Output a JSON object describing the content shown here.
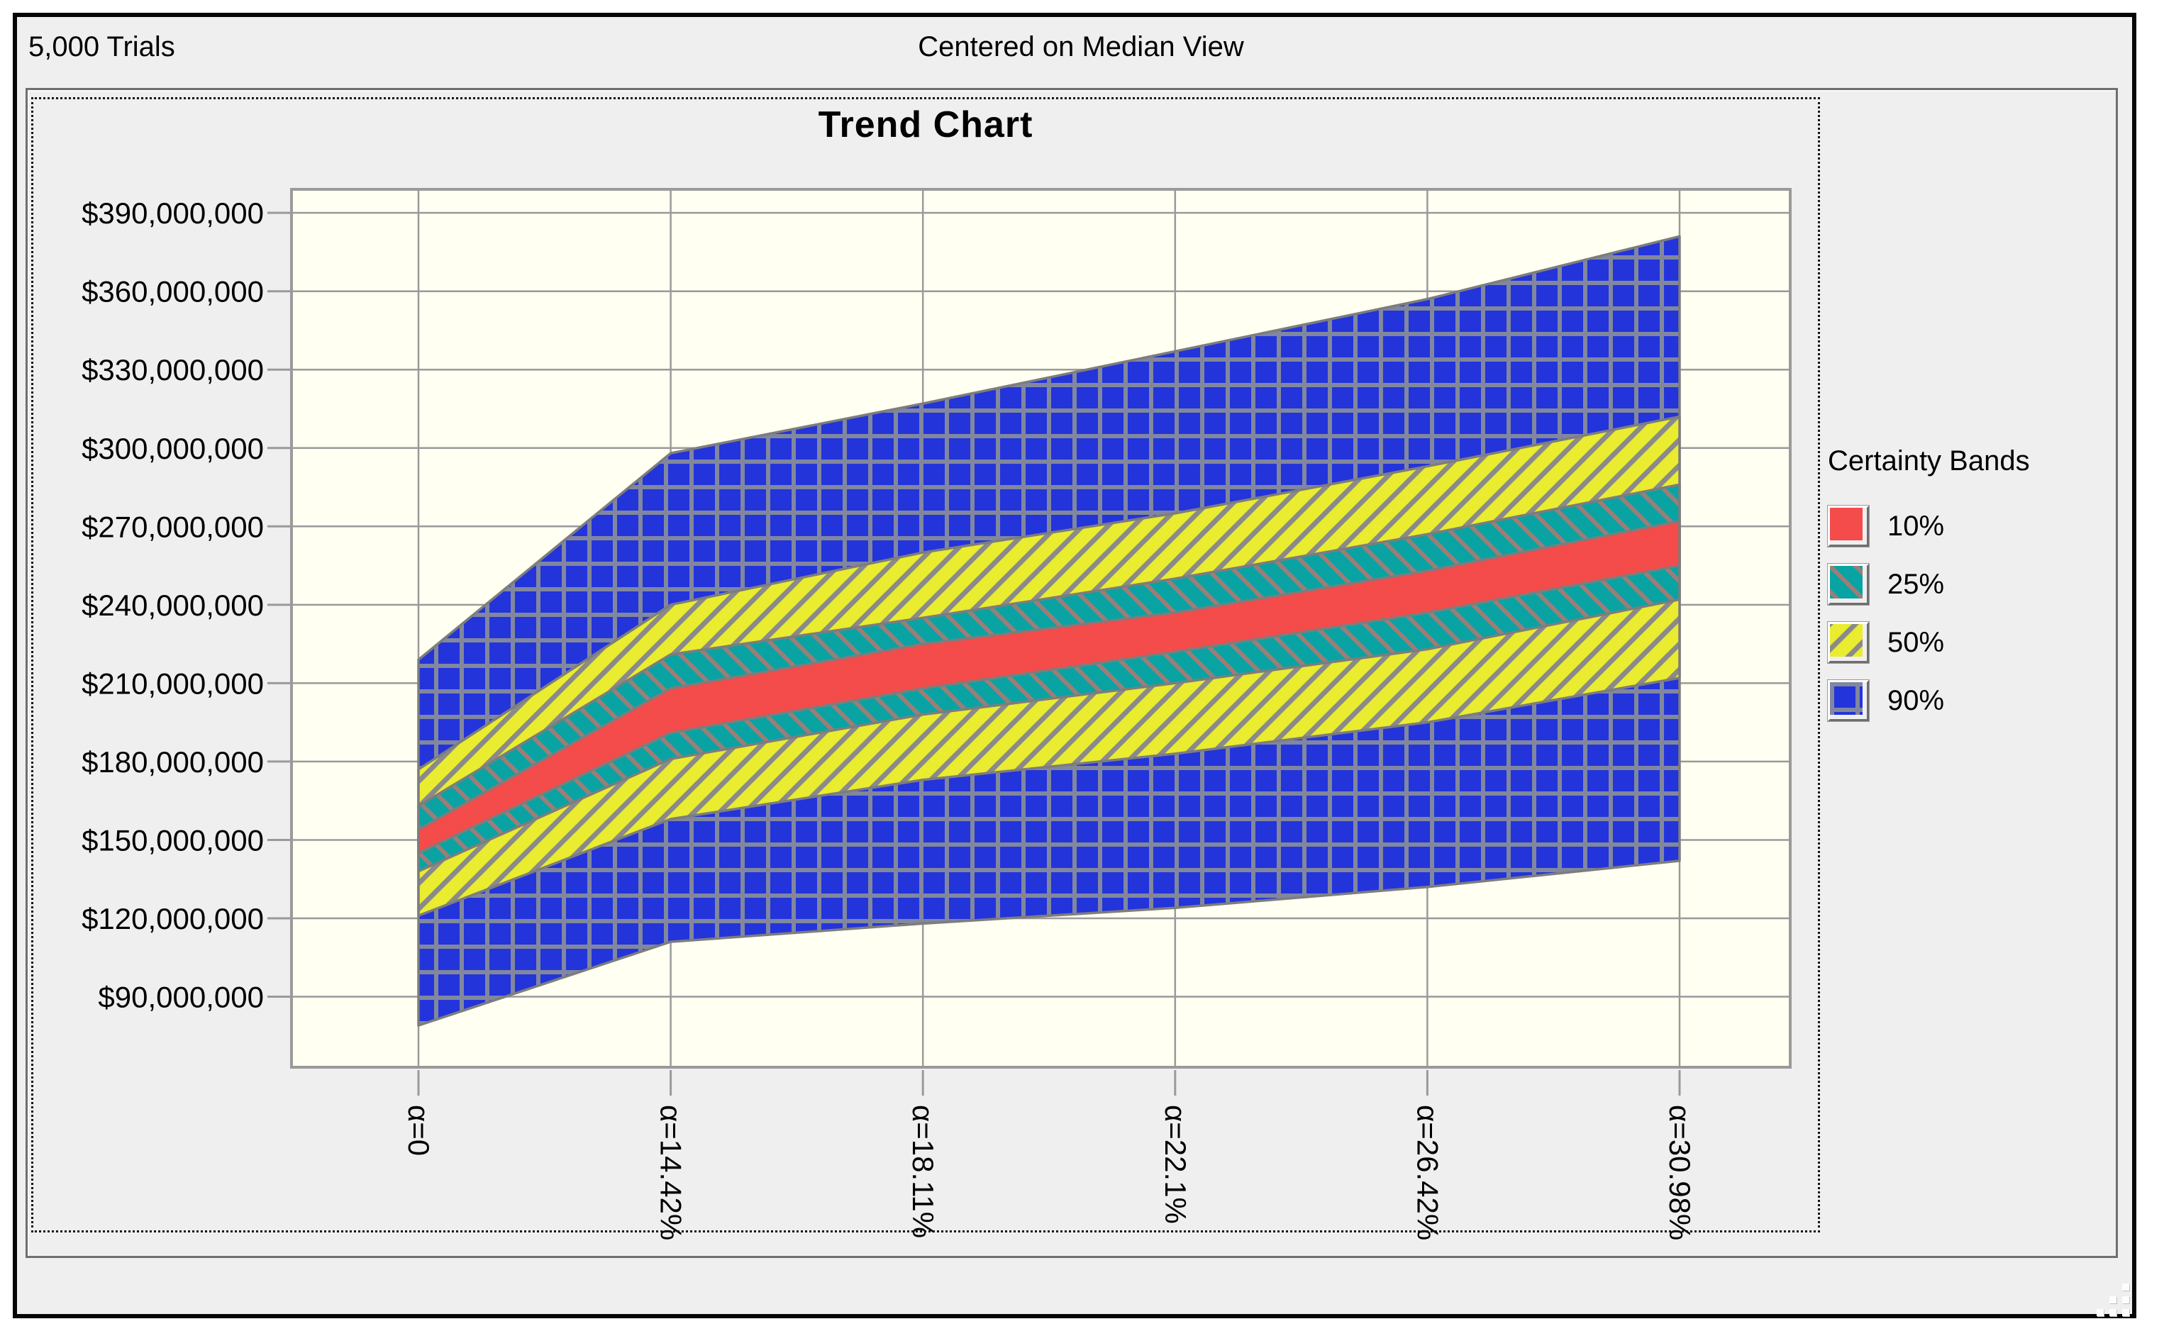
{
  "window": {
    "header_left": "5,000 Trials",
    "header_center": "Centered on Median View"
  },
  "chart_data": {
    "type": "area",
    "title": "Trend Chart",
    "categories": [
      "α=0",
      "α=14.42%",
      "α=18.11%",
      "α=22.1%",
      "α=26.42%",
      "α=30.98%"
    ],
    "xlabel": "",
    "ylabel": "",
    "y_tick_values_millions": [
      90,
      120,
      150,
      180,
      210,
      240,
      270,
      300,
      330,
      360,
      390
    ],
    "y_tick_labels": [
      "$90,000,000",
      "$120,000,000",
      "$150,000,000",
      "$180,000,000",
      "$210,000,000",
      "$240,000,000",
      "$270,000,000",
      "$300,000,000",
      "$330,000,000",
      "$360,000,000",
      "$390,000,000"
    ],
    "ylim_millions": [
      63,
      399
    ],
    "grid": true,
    "plot_bg_color": "#fffff2",
    "grid_color": "#9a9a9a",
    "band_outline_color": "#7d7d7d",
    "bands": [
      {
        "label": "10%",
        "pattern": "solid",
        "color": "#f44b4b",
        "hatch_color": "",
        "lower_millions": [
          145,
          191,
          208,
          222,
          237,
          255
        ],
        "upper_millions": [
          154,
          208,
          225,
          237,
          253,
          272
        ]
      },
      {
        "label": "25%",
        "pattern": "diag-down",
        "color": "#0aa3a3",
        "hatch_color": "#9b7e78",
        "lower_millions": [
          138,
          181,
          198,
          210,
          223,
          242
        ],
        "upper_millions": [
          163,
          221,
          235,
          250,
          267,
          286
        ]
      },
      {
        "label": "50%",
        "pattern": "diag-up",
        "color": "#e9ec2f",
        "hatch_color": "#8a8a8a",
        "lower_millions": [
          121,
          158,
          173,
          183,
          195,
          212
        ],
        "upper_millions": [
          177,
          240,
          260,
          275,
          293,
          312
        ]
      },
      {
        "label": "90%",
        "pattern": "grid",
        "color": "#2334db",
        "hatch_color": "#81879e",
        "lower_millions": [
          79,
          111,
          118,
          124,
          132,
          142
        ],
        "upper_millions": [
          219,
          298,
          317,
          337,
          357,
          381
        ]
      }
    ],
    "legend": {
      "title": "Certainty Bands",
      "position": "right",
      "entries": [
        "10%",
        "25%",
        "50%",
        "90%"
      ]
    }
  }
}
